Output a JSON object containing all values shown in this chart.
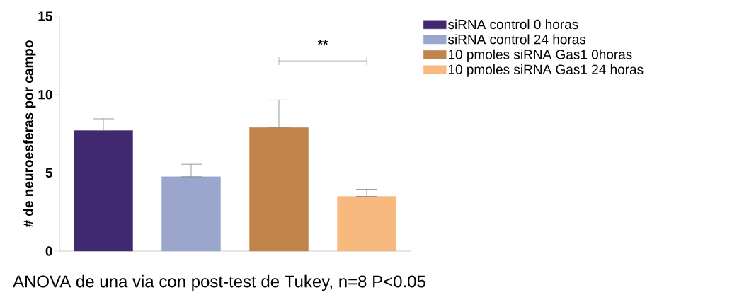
{
  "chart_data": {
    "type": "bar",
    "ylabel": "# de neuroesferas por campo",
    "categories": [
      null,
      null,
      null,
      null
    ],
    "series": [
      {
        "name": "siRNA control 0 horas",
        "color": "#41296f",
        "values": [
          7.7,
          null,
          null,
          null
        ],
        "errors": [
          [
            7.7,
            8.45
          ],
          null,
          null,
          null
        ]
      },
      {
        "name": "siRNA control 24 horas",
        "color": "#9aa6cc",
        "values": [
          null,
          4.75,
          null,
          null
        ],
        "errors": [
          null,
          [
            4.75,
            5.55
          ],
          null,
          null
        ]
      },
      {
        "name": "10 pmoles siRNA Gas1 0horas",
        "color": "#c0834a",
        "values": [
          null,
          null,
          7.9,
          null
        ],
        "errors": [
          null,
          null,
          [
            7.9,
            9.65
          ],
          null
        ]
      },
      {
        "name": "10 pmoles siRNA Gas1 24 horas",
        "color": "#f7b97e",
        "values": [
          null,
          null,
          null,
          3.5
        ],
        "errors": [
          null,
          null,
          null,
          [
            3.5,
            3.95
          ]
        ]
      }
    ],
    "ylim": [
      0,
      15
    ],
    "yticks": [
      0,
      5,
      10,
      15
    ],
    "grid": false,
    "legend": "right",
    "annotations": [
      "**",
      "ANOVA de una via con post-test de Tukey, n=8 P<0.05"
    ]
  }
}
